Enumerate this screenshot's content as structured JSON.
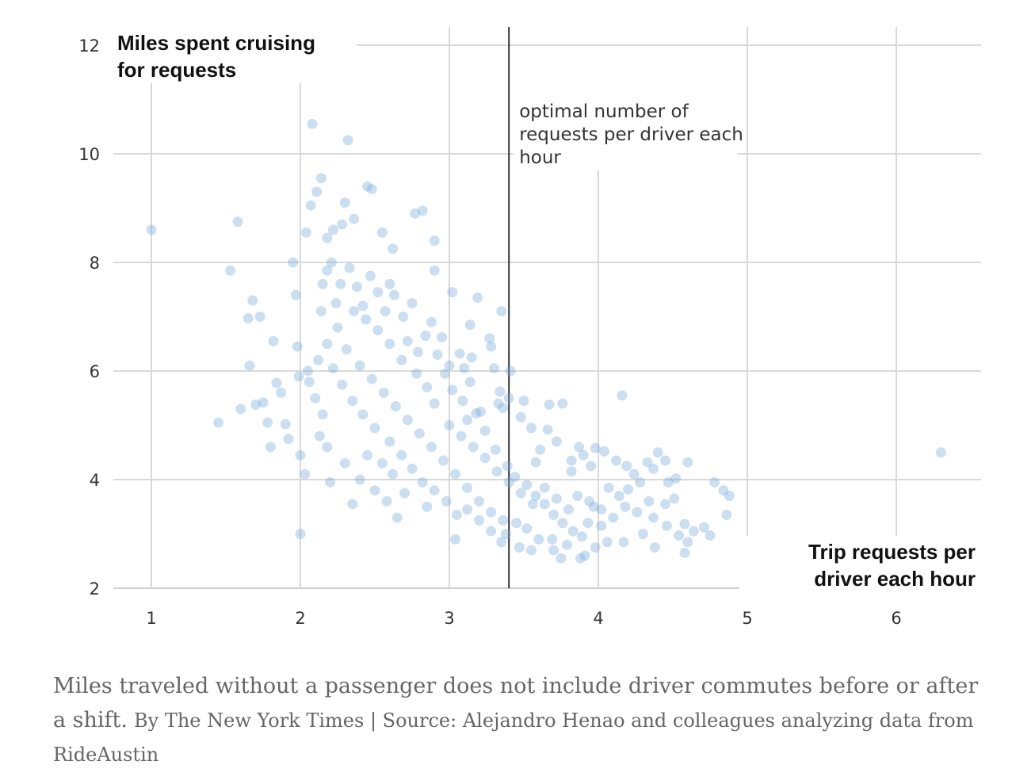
{
  "chart_data": {
    "type": "scatter",
    "xlabel": "Trip requests per driver each hour",
    "ylabel": "Miles spent cruising for requests",
    "xlim": [
      0.75,
      6.55
    ],
    "ylim": [
      2,
      12.3
    ],
    "x_ticks": [
      "1",
      "2",
      "3",
      "4",
      "5",
      "6"
    ],
    "y_ticks": [
      "2",
      "4",
      "6",
      "8",
      "10",
      "12"
    ],
    "grid": true,
    "point_color": "#7aabdb",
    "annotation": {
      "x": 3.4,
      "lines": [
        "optimal number of",
        "requests per driver each",
        "hour"
      ]
    },
    "series": [
      {
        "points": [
          [
            1.0,
            8.6
          ],
          [
            1.45,
            5.05
          ],
          [
            1.53,
            7.85
          ],
          [
            1.58,
            8.75
          ],
          [
            1.6,
            5.3
          ],
          [
            1.65,
            6.97
          ],
          [
            1.68,
            7.3
          ],
          [
            1.66,
            6.1
          ],
          [
            1.7,
            5.38
          ],
          [
            1.73,
            7.0
          ],
          [
            1.75,
            5.42
          ],
          [
            1.78,
            5.05
          ],
          [
            1.8,
            4.6
          ],
          [
            1.82,
            6.55
          ],
          [
            1.84,
            5.78
          ],
          [
            1.87,
            5.6
          ],
          [
            1.9,
            5.02
          ],
          [
            1.92,
            4.75
          ],
          [
            1.95,
            8.0
          ],
          [
            1.97,
            7.4
          ],
          [
            1.98,
            6.45
          ],
          [
            1.99,
            5.9
          ],
          [
            2.0,
            3.0
          ],
          [
            2.03,
            4.1
          ],
          [
            2.04,
            8.55
          ],
          [
            2.08,
            10.55
          ],
          [
            2.07,
            9.05
          ],
          [
            2.11,
            9.3
          ],
          [
            2.14,
            9.55
          ],
          [
            2.18,
            8.45
          ],
          [
            2.22,
            8.6
          ],
          [
            2.28,
            8.7
          ],
          [
            2.3,
            9.1
          ],
          [
            2.36,
            8.8
          ],
          [
            2.45,
            9.4
          ],
          [
            2.48,
            9.35
          ],
          [
            2.32,
            10.25
          ],
          [
            2.55,
            8.55
          ],
          [
            2.62,
            8.25
          ],
          [
            2.77,
            8.9
          ],
          [
            2.82,
            8.95
          ],
          [
            2.9,
            8.4
          ],
          [
            2.9,
            7.85
          ],
          [
            2.75,
            7.25
          ],
          [
            2.6,
            7.6
          ],
          [
            2.35,
            3.55
          ],
          [
            2.2,
            3.95
          ],
          [
            2.0,
            4.45
          ],
          [
            2.18,
            4.6
          ],
          [
            2.65,
            3.3
          ],
          [
            2.85,
            3.5
          ],
          [
            3.04,
            2.9
          ],
          [
            3.19,
            7.35
          ],
          [
            3.02,
            7.45
          ],
          [
            3.14,
            6.85
          ],
          [
            3.35,
            7.1
          ],
          [
            3.27,
            6.6
          ],
          [
            3.15,
            6.25
          ],
          [
            3.3,
            6.05
          ],
          [
            3.41,
            6.0
          ],
          [
            3.36,
            5.32
          ],
          [
            3.34,
            5.62
          ],
          [
            3.33,
            5.4
          ],
          [
            3.5,
            5.45
          ],
          [
            3.48,
            5.15
          ],
          [
            3.55,
            4.95
          ],
          [
            3.66,
            4.92
          ],
          [
            3.72,
            4.7
          ],
          [
            3.67,
            5.38
          ],
          [
            3.76,
            5.4
          ],
          [
            3.61,
            4.55
          ],
          [
            3.58,
            4.32
          ],
          [
            3.82,
            4.15
          ],
          [
            3.95,
            4.25
          ],
          [
            3.9,
            4.45
          ],
          [
            3.87,
            4.6
          ],
          [
            3.98,
            4.58
          ],
          [
            4.04,
            4.52
          ],
          [
            4.12,
            4.35
          ],
          [
            4.19,
            4.25
          ],
          [
            4.24,
            4.1
          ],
          [
            4.07,
            3.85
          ],
          [
            4.14,
            3.7
          ],
          [
            4.2,
            3.82
          ],
          [
            4.28,
            3.95
          ],
          [
            4.33,
            4.32
          ],
          [
            4.4,
            4.5
          ],
          [
            4.37,
            4.2
          ],
          [
            4.45,
            4.35
          ],
          [
            4.47,
            3.95
          ],
          [
            4.51,
            3.65
          ],
          [
            4.52,
            4.02
          ],
          [
            4.6,
            4.32
          ],
          [
            4.45,
            3.55
          ],
          [
            4.37,
            3.3
          ],
          [
            4.46,
            3.15
          ],
          [
            4.54,
            2.97
          ],
          [
            4.58,
            3.18
          ],
          [
            4.6,
            2.85
          ],
          [
            4.64,
            3.05
          ],
          [
            4.71,
            3.12
          ],
          [
            4.75,
            2.97
          ],
          [
            4.78,
            3.95
          ],
          [
            4.84,
            3.8
          ],
          [
            4.88,
            3.7
          ],
          [
            4.86,
            3.35
          ],
          [
            4.16,
            5.55
          ],
          [
            3.82,
            4.35
          ],
          [
            3.97,
            3.5
          ],
          [
            3.93,
            3.2
          ],
          [
            3.88,
            2.55
          ],
          [
            3.91,
            2.6
          ],
          [
            3.75,
            2.55
          ],
          [
            3.69,
            2.9
          ],
          [
            3.79,
            2.8
          ],
          [
            4.06,
            2.85
          ],
          [
            4.17,
            2.85
          ],
          [
            4.3,
            3.0
          ],
          [
            4.38,
            2.75
          ],
          [
            4.58,
            2.65
          ],
          [
            6.3,
            4.5
          ],
          [
            3.4,
            5.5
          ],
          [
            3.18,
            5.22
          ],
          [
            3.07,
            6.32
          ],
          [
            3.28,
            6.45
          ],
          [
            3.14,
            5.8
          ],
          [
            3.0,
            6.1
          ],
          [
            2.95,
            6.62
          ],
          [
            2.88,
            6.9
          ],
          [
            3.1,
            6.05
          ],
          [
            2.12,
            6.2
          ],
          [
            2.1,
            5.5
          ],
          [
            2.05,
            6.0
          ],
          [
            2.15,
            5.2
          ],
          [
            2.13,
            4.8
          ],
          [
            2.06,
            5.8
          ],
          [
            2.14,
            7.1
          ],
          [
            2.15,
            7.6
          ],
          [
            2.18,
            7.85
          ],
          [
            2.21,
            8.0
          ],
          [
            2.24,
            7.25
          ],
          [
            2.27,
            7.6
          ],
          [
            2.33,
            7.9
          ],
          [
            2.38,
            7.55
          ],
          [
            2.42,
            7.2
          ],
          [
            2.47,
            7.75
          ],
          [
            2.52,
            7.45
          ],
          [
            2.57,
            7.1
          ],
          [
            2.63,
            7.4
          ],
          [
            2.69,
            7.0
          ],
          [
            2.72,
            6.55
          ],
          [
            2.79,
            6.35
          ],
          [
            2.84,
            6.65
          ],
          [
            2.92,
            6.3
          ],
          [
            2.97,
            5.95
          ],
          [
            3.02,
            5.65
          ],
          [
            3.09,
            5.45
          ],
          [
            3.12,
            5.1
          ],
          [
            3.21,
            5.25
          ],
          [
            3.24,
            4.9
          ],
          [
            3.31,
            4.55
          ],
          [
            3.39,
            4.25
          ],
          [
            3.44,
            4.05
          ],
          [
            3.52,
            3.9
          ],
          [
            3.58,
            3.7
          ],
          [
            3.64,
            3.55
          ],
          [
            3.7,
            3.35
          ],
          [
            3.76,
            3.2
          ],
          [
            3.83,
            3.05
          ],
          [
            3.89,
            2.95
          ],
          [
            3.45,
            3.2
          ],
          [
            3.38,
            3.0
          ],
          [
            3.52,
            3.1
          ],
          [
            3.6,
            2.9
          ],
          [
            3.47,
            2.75
          ],
          [
            3.35,
            2.85
          ],
          [
            3.28,
            3.05
          ],
          [
            3.2,
            3.25
          ],
          [
            3.12,
            3.45
          ],
          [
            3.05,
            3.35
          ],
          [
            2.98,
            3.6
          ],
          [
            2.9,
            3.8
          ],
          [
            2.82,
            3.95
          ],
          [
            2.75,
            4.2
          ],
          [
            2.68,
            4.45
          ],
          [
            2.6,
            4.7
          ],
          [
            2.5,
            4.95
          ],
          [
            2.42,
            5.2
          ],
          [
            2.35,
            5.45
          ],
          [
            2.28,
            5.75
          ],
          [
            2.22,
            6.05
          ],
          [
            2.18,
            6.5
          ],
          [
            2.25,
            6.8
          ],
          [
            2.31,
            6.4
          ],
          [
            2.4,
            6.1
          ],
          [
            2.48,
            5.85
          ],
          [
            2.56,
            5.6
          ],
          [
            2.64,
            5.35
          ],
          [
            2.72,
            5.1
          ],
          [
            2.8,
            4.85
          ],
          [
            2.88,
            4.6
          ],
          [
            2.96,
            4.35
          ],
          [
            3.04,
            4.1
          ],
          [
            3.12,
            3.85
          ],
          [
            3.2,
            3.6
          ],
          [
            3.28,
            3.4
          ],
          [
            3.36,
            3.25
          ],
          [
            2.3,
            4.3
          ],
          [
            2.4,
            4.0
          ],
          [
            2.5,
            3.8
          ],
          [
            2.58,
            3.6
          ],
          [
            2.7,
            3.75
          ],
          [
            2.45,
            4.45
          ],
          [
            2.55,
            4.3
          ],
          [
            2.62,
            4.1
          ],
          [
            2.9,
            5.4
          ],
          [
            2.85,
            5.7
          ],
          [
            2.78,
            5.95
          ],
          [
            2.68,
            6.2
          ],
          [
            2.6,
            6.5
          ],
          [
            2.52,
            6.75
          ],
          [
            2.44,
            6.95
          ],
          [
            2.36,
            7.1
          ],
          [
            3.0,
            5.0
          ],
          [
            3.08,
            4.8
          ],
          [
            3.16,
            4.6
          ],
          [
            3.24,
            4.4
          ],
          [
            3.32,
            4.15
          ],
          [
            3.4,
            3.95
          ],
          [
            3.48,
            3.75
          ],
          [
            3.56,
            3.55
          ],
          [
            3.64,
            3.85
          ],
          [
            3.72,
            3.65
          ],
          [
            3.8,
            3.45
          ],
          [
            3.86,
            3.7
          ],
          [
            3.94,
            3.6
          ],
          [
            4.02,
            3.45
          ],
          [
            4.1,
            3.3
          ],
          [
            4.18,
            3.5
          ],
          [
            4.26,
            3.4
          ],
          [
            4.34,
            3.6
          ],
          [
            4.02,
            3.15
          ],
          [
            3.98,
            2.75
          ],
          [
            3.7,
            2.7
          ],
          [
            3.55,
            2.7
          ]
        ]
      }
    ]
  },
  "caption": {
    "main": "Miles traveled without a passenger does not include driver commutes before or after a shift.",
    "credit": "By The New York Times | Source: Alejandro Henao and colleagues analyzing data from RideAustin"
  }
}
